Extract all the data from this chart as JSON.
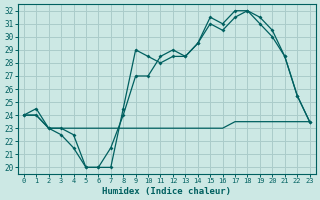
{
  "xlabel": "Humidex (Indice chaleur)",
  "bg_color": "#cce8e4",
  "grid_color": "#aaccca",
  "line_color": "#006060",
  "xlim": [
    -0.5,
    23.5
  ],
  "ylim": [
    19.5,
    32.5
  ],
  "yticks": [
    20,
    21,
    22,
    23,
    24,
    25,
    26,
    27,
    28,
    29,
    30,
    31,
    32
  ],
  "xticks": [
    0,
    1,
    2,
    3,
    4,
    5,
    6,
    7,
    8,
    9,
    10,
    11,
    12,
    13,
    14,
    15,
    16,
    17,
    18,
    19,
    20,
    21,
    22,
    23
  ],
  "line1_x": [
    0,
    1,
    2,
    3,
    4,
    5,
    6,
    7,
    8,
    9,
    10,
    11,
    12,
    13,
    14,
    15,
    16,
    17,
    18,
    19,
    20,
    21,
    22,
    23
  ],
  "line1_y": [
    24.0,
    24.5,
    23.0,
    22.5,
    21.5,
    20.0,
    20.0,
    20.0,
    24.5,
    29.0,
    28.5,
    28.0,
    28.5,
    28.5,
    29.5,
    31.5,
    31.0,
    32.0,
    32.0,
    31.5,
    30.5,
    28.5,
    25.5,
    23.5
  ],
  "line2_x": [
    0,
    1,
    2,
    3,
    4,
    5,
    6,
    7,
    8,
    9,
    10,
    11,
    12,
    13,
    14,
    15,
    16,
    17,
    18,
    19,
    20,
    21,
    22,
    23
  ],
  "line2_y": [
    24.0,
    24.0,
    23.0,
    23.0,
    22.5,
    20.0,
    20.0,
    21.5,
    24.0,
    27.0,
    27.0,
    28.5,
    29.0,
    28.5,
    29.5,
    31.0,
    30.5,
    31.5,
    32.0,
    31.0,
    30.0,
    28.5,
    25.5,
    23.5
  ],
  "line3_x": [
    0,
    1,
    2,
    3,
    4,
    5,
    6,
    7,
    8,
    9,
    10,
    11,
    12,
    13,
    14,
    15,
    16,
    17,
    18,
    19,
    20,
    21,
    22,
    23
  ],
  "line3_y": [
    24.0,
    24.0,
    23.0,
    23.0,
    23.0,
    23.0,
    23.0,
    23.0,
    23.0,
    23.0,
    23.0,
    23.0,
    23.0,
    23.0,
    23.0,
    23.0,
    23.0,
    23.5,
    23.5,
    23.5,
    23.5,
    23.5,
    23.5,
    23.5
  ]
}
